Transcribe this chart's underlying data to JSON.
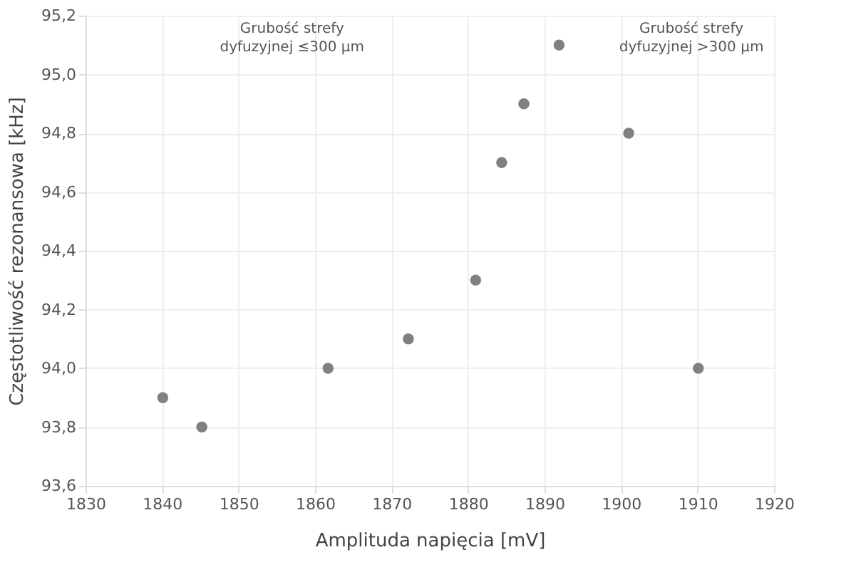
{
  "chart_data": {
    "type": "scatter",
    "xlabel": "Amplituda napięcia [mV]",
    "ylabel": "Częstotliwość rezonansowa [kHz]",
    "annotations": [
      "Grubość strefy dyfuzyjnej ≤300 µm",
      "Grubość strefy dyfuzyjnej >300 µm"
    ],
    "x": [
      1840.1,
      1845.2,
      1861.7,
      1872.2,
      1881.0,
      1884.4,
      1887.3,
      1891.9,
      1901.0,
      1910.1
    ],
    "series": [
      {
        "color": "#808080",
        "values": [
          93.9,
          93.8,
          94.0,
          94.1,
          94.3,
          94.7,
          94.9,
          95.1,
          94.8,
          94.0
        ]
      }
    ],
    "xlim": [
      1830,
      1920
    ],
    "xticks": [
      1830,
      1840,
      1850,
      1860,
      1870,
      1880,
      1890,
      1900,
      1910,
      1920
    ],
    "ylim": [
      93.6,
      95.2
    ],
    "yticks": [
      {
        "value": 93.6,
        "label": "93,6"
      },
      {
        "value": 93.8,
        "label": "93,8"
      },
      {
        "value": 94.0,
        "label": "94,0"
      },
      {
        "value": 94.2,
        "label": "94,2"
      },
      {
        "value": 94.4,
        "label": "94,4"
      },
      {
        "value": 94.6,
        "label": "94,6"
      },
      {
        "value": 94.8,
        "label": "94,8"
      },
      {
        "value": 95.0,
        "label": "95,0"
      },
      {
        "value": 95.2,
        "label": "95,2"
      }
    ],
    "grid": true,
    "marker": "circle"
  }
}
